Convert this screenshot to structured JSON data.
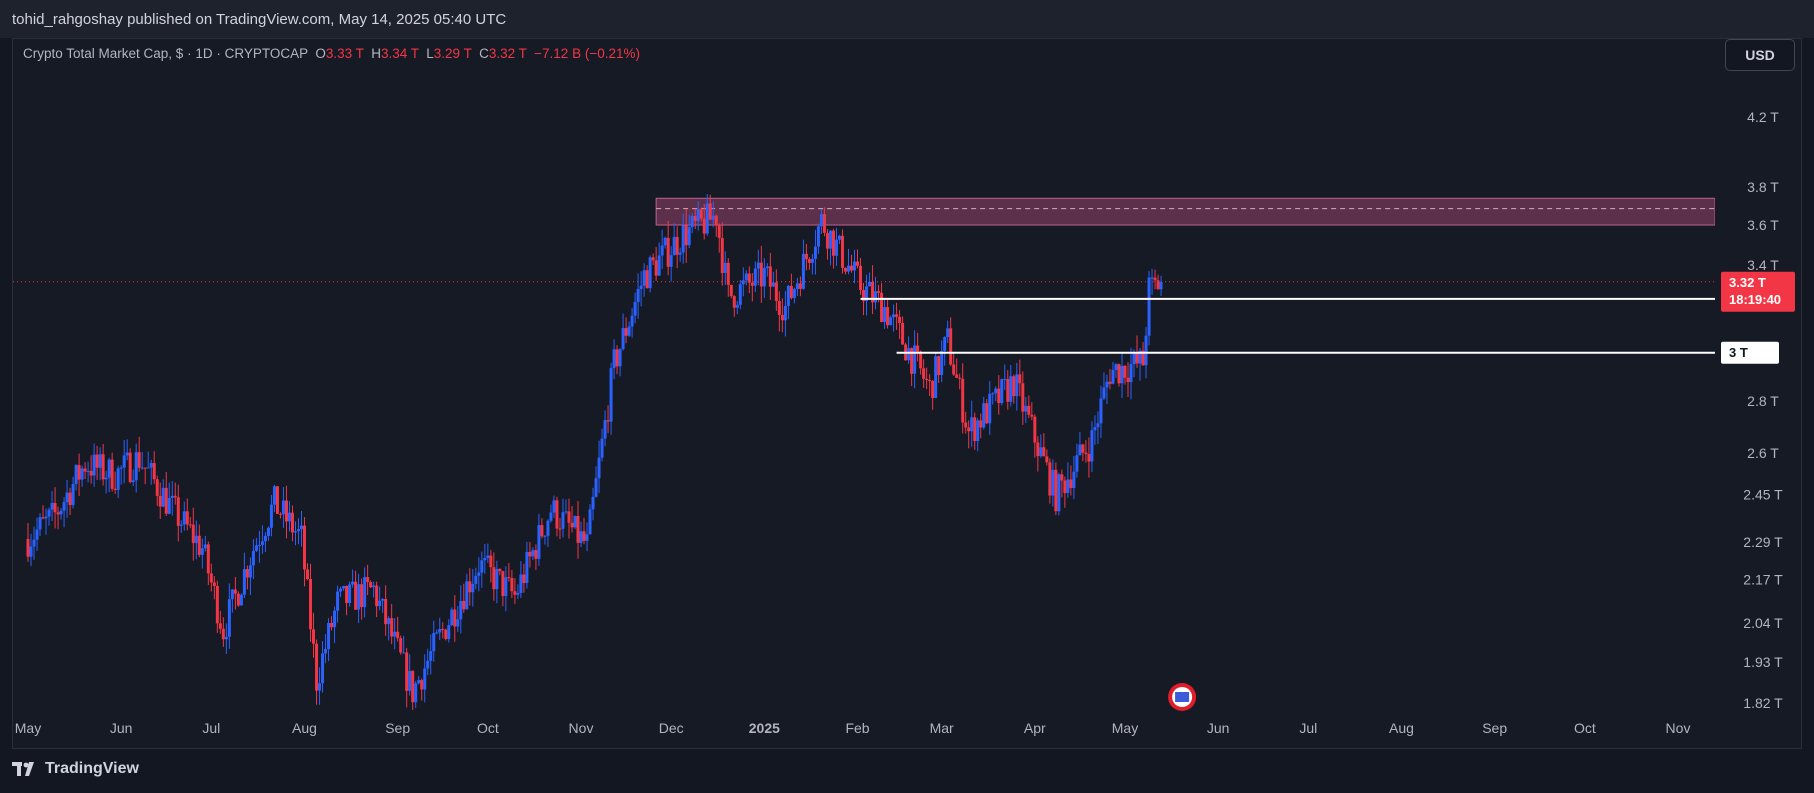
{
  "publisher": "tohid_rahgoshay published on TradingView.com, May 14, 2025 05:40 UTC",
  "legend": {
    "symbol": "Crypto Total Market Cap, $ · 1D · CRYPTOCAP",
    "open_label": "O",
    "open": "3.33 T",
    "high_label": "H",
    "high": "3.34 T",
    "low_label": "L",
    "low": "3.29 T",
    "close_label": "C",
    "close": "3.32 T",
    "change": "−7.12 B (−0.21%)"
  },
  "currency_button": "USD",
  "footer_brand": "TradingView",
  "colors": {
    "up": "#2962ff",
    "down": "#f23645",
    "zone": "#7b3a5a",
    "level": "#ffffff",
    "background": "#161a25"
  },
  "chart_data": {
    "type": "candlestick",
    "title": "Crypto Total Market Cap, $ · 1D · CRYPTOCAP",
    "y_scale": "log",
    "ylim": [
      1.78,
      4.45
    ],
    "y_ticks": [
      {
        "value": 4.2,
        "label": "4.2 T"
      },
      {
        "value": 3.8,
        "label": "3.8 T"
      },
      {
        "value": 3.6,
        "label": "3.6 T"
      },
      {
        "value": 3.4,
        "label": "3.4 T"
      },
      {
        "value": 2.8,
        "label": "2.8 T"
      },
      {
        "value": 2.6,
        "label": "2.6 T"
      },
      {
        "value": 2.45,
        "label": "2.45 T"
      },
      {
        "value": 2.29,
        "label": "2.29 T"
      },
      {
        "value": 2.17,
        "label": "2.17 T"
      },
      {
        "value": 2.04,
        "label": "2.04 T"
      },
      {
        "value": 1.93,
        "label": "1.93 T"
      },
      {
        "value": 1.82,
        "label": "1.82 T"
      }
    ],
    "x_ticks": [
      "May",
      "Jun",
      "Jul",
      "Aug",
      "Sep",
      "Oct",
      "Nov",
      "Dec",
      "2025",
      "Feb",
      "Mar",
      "Apr",
      "May",
      "Jun",
      "Jul",
      "Aug",
      "Sep",
      "Oct",
      "Nov"
    ],
    "x_tick_dates": [
      "2024-05-01",
      "2024-06-01",
      "2024-07-01",
      "2024-08-01",
      "2024-09-01",
      "2024-10-01",
      "2024-11-01",
      "2024-12-01",
      "2025-01-01",
      "2025-02-01",
      "2025-03-01",
      "2025-04-01",
      "2025-05-01",
      "2025-06-01",
      "2025-07-01",
      "2025-08-01",
      "2025-09-01",
      "2025-10-01",
      "2025-11-01"
    ],
    "price_path": [
      {
        "date": "2024-05-01",
        "close": 2.3
      },
      {
        "date": "2024-05-10",
        "close": 2.38
      },
      {
        "date": "2024-05-20",
        "close": 2.56
      },
      {
        "date": "2024-05-30",
        "close": 2.52
      },
      {
        "date": "2024-06-07",
        "close": 2.58
      },
      {
        "date": "2024-06-18",
        "close": 2.4
      },
      {
        "date": "2024-06-28",
        "close": 2.27
      },
      {
        "date": "2024-07-05",
        "close": 2.02
      },
      {
        "date": "2024-07-15",
        "close": 2.27
      },
      {
        "date": "2024-07-22",
        "close": 2.42
      },
      {
        "date": "2024-07-31",
        "close": 2.3
      },
      {
        "date": "2024-08-05",
        "close": 1.88
      },
      {
        "date": "2024-08-12",
        "close": 2.1
      },
      {
        "date": "2024-08-24",
        "close": 2.14
      },
      {
        "date": "2024-09-06",
        "close": 1.85
      },
      {
        "date": "2024-09-15",
        "close": 2.0
      },
      {
        "date": "2024-09-28",
        "close": 2.22
      },
      {
        "date": "2024-10-10",
        "close": 2.12
      },
      {
        "date": "2024-10-22",
        "close": 2.4
      },
      {
        "date": "2024-11-03",
        "close": 2.28
      },
      {
        "date": "2024-11-12",
        "close": 2.95
      },
      {
        "date": "2024-11-22",
        "close": 3.35
      },
      {
        "date": "2024-12-05",
        "close": 3.55
      },
      {
        "date": "2024-12-16",
        "close": 3.65
      },
      {
        "date": "2024-12-20",
        "close": 3.25
      },
      {
        "date": "2025-01-01",
        "close": 3.35
      },
      {
        "date": "2025-01-08",
        "close": 3.2
      },
      {
        "date": "2025-01-20",
        "close": 3.62
      },
      {
        "date": "2025-02-02",
        "close": 3.3
      },
      {
        "date": "2025-02-10",
        "close": 3.2
      },
      {
        "date": "2025-02-25",
        "close": 2.85
      },
      {
        "date": "2025-03-03",
        "close": 3.05
      },
      {
        "date": "2025-03-10",
        "close": 2.68
      },
      {
        "date": "2025-03-25",
        "close": 2.88
      },
      {
        "date": "2025-04-08",
        "close": 2.45
      },
      {
        "date": "2025-04-20",
        "close": 2.65
      },
      {
        "date": "2025-04-26",
        "close": 2.92
      },
      {
        "date": "2025-05-07",
        "close": 2.96
      },
      {
        "date": "2025-05-09",
        "close": 3.28
      },
      {
        "date": "2025-05-13",
        "close": 3.32
      }
    ],
    "last_date": "2025-05-13",
    "last_price": {
      "value": 3.32,
      "label": "3.32 T",
      "countdown": "18:19:40"
    },
    "resistance_zone": {
      "from": 3.6,
      "to": 3.74,
      "start_date": "2024-11-26",
      "mid": 3.685
    },
    "levels": [
      {
        "value": 3.24,
        "label": "3.24 T",
        "start_date": "2025-02-02"
      },
      {
        "value": 3.0,
        "label": "3 T",
        "start_date": "2025-02-14"
      }
    ],
    "grid": false
  }
}
